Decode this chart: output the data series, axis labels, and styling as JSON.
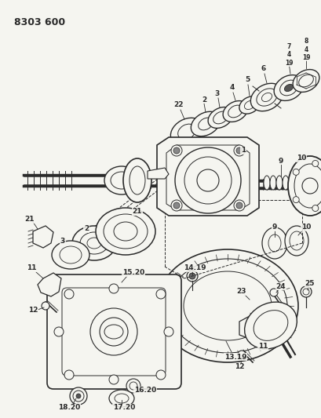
{
  "title": "8303 600",
  "bg_color": "#f5f5f0",
  "line_color": "#2a2a2a",
  "title_fontsize": 9,
  "label_fontsize": 6.5,
  "fig_w": 4.1,
  "fig_h": 5.33,
  "dpi": 100
}
